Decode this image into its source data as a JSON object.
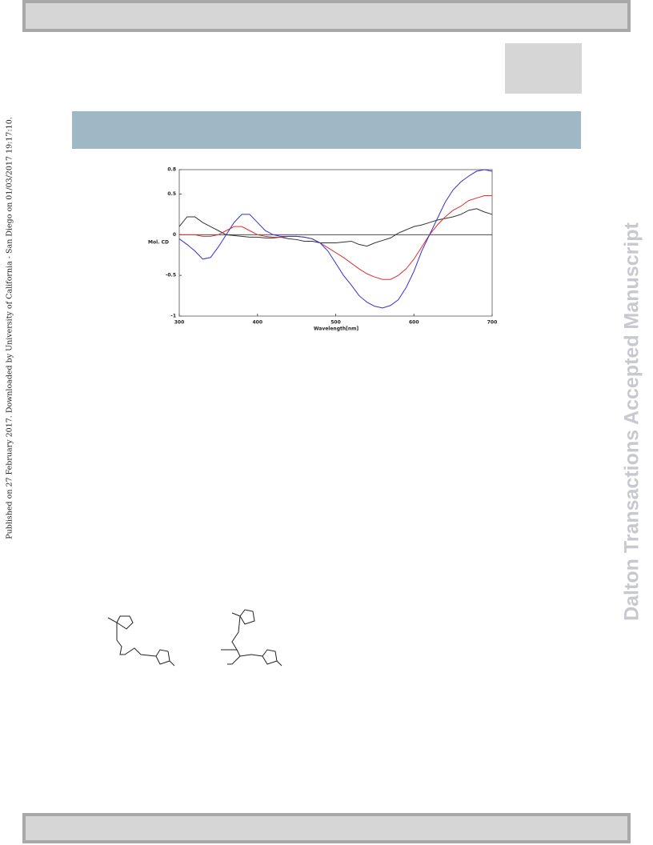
{
  "margin_note": "Published on 27 February 2017. Downloaded by University of California - San Diego on 01/03/2017 19:17:10.",
  "watermark": "Dalton Transactions Accepted Manuscript",
  "chart_data": {
    "type": "line",
    "xlabel": "Wavelength[nm]",
    "ylabel": "Mol. CD",
    "x": [
      300,
      310,
      320,
      330,
      340,
      350,
      360,
      370,
      380,
      390,
      400,
      410,
      420,
      430,
      440,
      450,
      460,
      470,
      480,
      490,
      500,
      510,
      520,
      530,
      540,
      550,
      560,
      570,
      580,
      590,
      600,
      610,
      620,
      630,
      640,
      650,
      660,
      670,
      680,
      690,
      700
    ],
    "series": [
      {
        "color": "#333333",
        "values": [
          0.1,
          0.22,
          0.22,
          0.15,
          0.1,
          0.05,
          0.0,
          -0.01,
          -0.02,
          -0.03,
          -0.03,
          -0.04,
          -0.04,
          -0.03,
          -0.05,
          -0.06,
          -0.08,
          -0.08,
          -0.1,
          -0.1,
          -0.1,
          -0.09,
          -0.08,
          -0.12,
          -0.14,
          -0.1,
          -0.07,
          -0.04,
          0.02,
          0.06,
          0.1,
          0.12,
          0.15,
          0.18,
          0.2,
          0.22,
          0.25,
          0.3,
          0.32,
          0.28,
          0.25
        ]
      },
      {
        "color": "#e03030",
        "values": [
          0.0,
          0.0,
          0.0,
          -0.02,
          -0.02,
          0.0,
          0.05,
          0.1,
          0.1,
          0.05,
          0.0,
          -0.02,
          -0.03,
          -0.03,
          -0.02,
          -0.02,
          -0.03,
          -0.05,
          -0.1,
          -0.16,
          -0.22,
          -0.28,
          -0.35,
          -0.42,
          -0.48,
          -0.52,
          -0.55,
          -0.55,
          -0.5,
          -0.42,
          -0.3,
          -0.15,
          0.0,
          0.12,
          0.22,
          0.3,
          0.35,
          0.42,
          0.45,
          0.48,
          0.48
        ]
      },
      {
        "color": "#3030d0",
        "values": [
          -0.05,
          -0.12,
          -0.2,
          -0.3,
          -0.28,
          -0.15,
          0.0,
          0.15,
          0.25,
          0.25,
          0.15,
          0.05,
          0.0,
          -0.02,
          -0.02,
          -0.02,
          -0.03,
          -0.05,
          -0.1,
          -0.2,
          -0.35,
          -0.5,
          -0.62,
          -0.75,
          -0.83,
          -0.88,
          -0.9,
          -0.87,
          -0.8,
          -0.65,
          -0.45,
          -0.2,
          0.0,
          0.2,
          0.4,
          0.55,
          0.65,
          0.72,
          0.78,
          0.8,
          0.78
        ]
      }
    ],
    "xlim": [
      300,
      700
    ],
    "xticks": [
      300,
      400,
      500,
      600,
      700
    ],
    "ylim": [
      -1,
      0.8
    ],
    "yticks": [
      0.8,
      0.5,
      0,
      -0.5,
      -1
    ]
  }
}
